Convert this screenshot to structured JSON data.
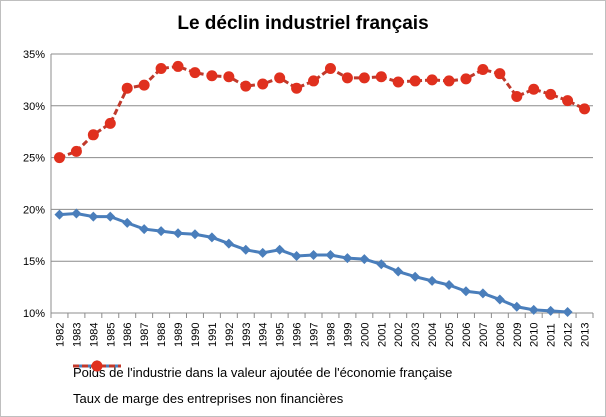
{
  "chart_data": {
    "type": "line",
    "title": "Le déclin industriel  français",
    "x": [
      "1982",
      "1983",
      "1984",
      "1985",
      "1986",
      "1987",
      "1988",
      "1989",
      "1990",
      "1991",
      "1992",
      "1993",
      "1994",
      "1995",
      "1996",
      "1997",
      "1998",
      "1999",
      "2000",
      "2001",
      "2002",
      "2003",
      "2004",
      "2005",
      "2006",
      "2007",
      "2008",
      "2009",
      "2010",
      "2011",
      "2012",
      "2013"
    ],
    "ylim": [
      10,
      35
    ],
    "yticks": [
      "10%",
      "15%",
      "20%",
      "25%",
      "30%",
      "35%"
    ],
    "grid": true,
    "legend_position": "bottom",
    "series": [
      {
        "name": "Poids de l'industrie  dans la valeur ajoutée de l'économie française",
        "color": "#4a7ebb",
        "marker": "diamond",
        "values": [
          19.5,
          19.6,
          19.3,
          19.3,
          18.7,
          18.1,
          17.9,
          17.7,
          17.6,
          17.3,
          16.7,
          16.1,
          15.8,
          16.1,
          15.5,
          15.6,
          15.6,
          15.3,
          15.2,
          14.7,
          14.0,
          13.5,
          13.1,
          12.7,
          12.1,
          11.9,
          11.3,
          10.6,
          10.3,
          10.2,
          10.1,
          null
        ]
      },
      {
        "name": "Taux de marge des entreprises non financières",
        "color": "#c0392b",
        "marker": "circle",
        "values": [
          25.0,
          25.6,
          27.2,
          28.3,
          31.7,
          32.0,
          33.6,
          33.8,
          33.2,
          32.9,
          32.8,
          31.9,
          32.1,
          32.7,
          31.7,
          32.4,
          33.6,
          32.7,
          32.7,
          32.8,
          32.3,
          32.4,
          32.5,
          32.4,
          32.6,
          33.5,
          33.1,
          30.9,
          31.6,
          31.1,
          30.5,
          29.7
        ]
      }
    ]
  }
}
